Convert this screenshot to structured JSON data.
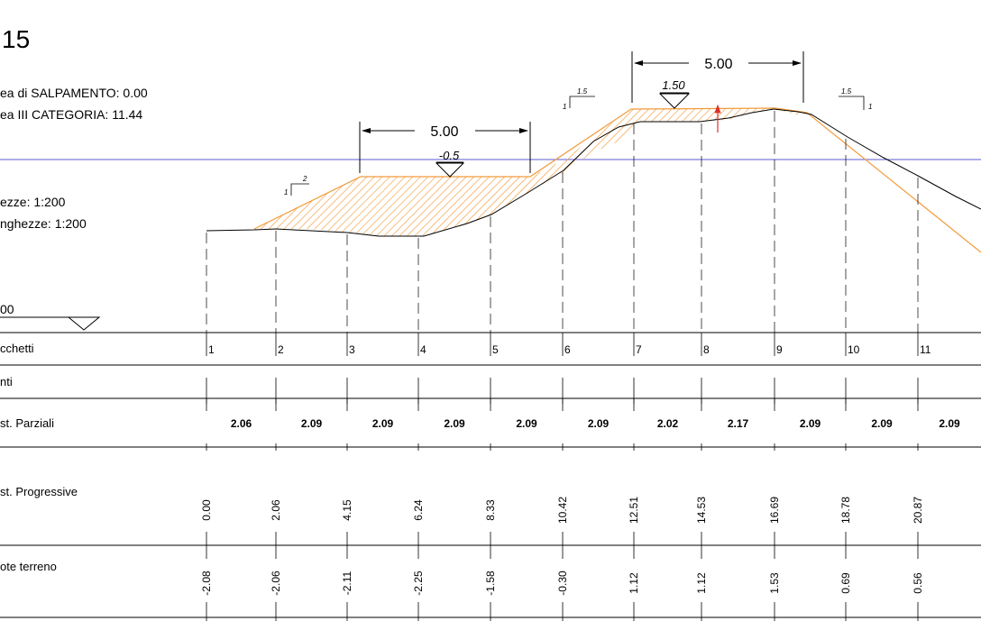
{
  "title": "15",
  "info": {
    "salpamento": "ea di SALPAMENTO: 0.00",
    "categoria": "ea III CATEGORIA: 11.44",
    "scale_heights": "ezze:  1:200",
    "scale_lengths": "nghezze: 1:200",
    "datum": "00"
  },
  "dimensions": {
    "left": "5.00",
    "right": "5.00"
  },
  "elevations": {
    "left": "-0.5",
    "right": "1.50"
  },
  "slopes": {
    "left": {
      "h": "2",
      "v": "1"
    },
    "mid": {
      "h": "1.5",
      "v": "1"
    },
    "right": {
      "h": "1.5",
      "v": "1"
    }
  },
  "rows": {
    "picchetti": "cchetti",
    "punti": "nti",
    "parziali": "st. Parziali",
    "progressive": "st. Progressive",
    "quote": "ote terreno"
  },
  "stations": [
    "1",
    "2",
    "3",
    "4",
    "5",
    "6",
    "7",
    "8",
    "9",
    "10",
    "11"
  ],
  "partial_distances": [
    "2.06",
    "2.09",
    "2.09",
    "2.09",
    "2.09",
    "2.09",
    "2.02",
    "2.17",
    "2.09",
    "2.09",
    "2.09"
  ],
  "progressive_distances": [
    "0.00",
    "2.06",
    "4.15",
    "6.24",
    "8.33",
    "10.42",
    "12.51",
    "14.53",
    "16.69",
    "18.78",
    "20.87"
  ],
  "ground_elevations": [
    "-2.08",
    "-2.06",
    "-2.11",
    "-2.25",
    "-1.58",
    "-0.30",
    "1.12",
    "1.12",
    "1.53",
    "0.69",
    "0.56"
  ],
  "colors": {
    "fill": "#f29a3a",
    "water": "#5b5bd6",
    "arrow": "#e0302a"
  }
}
